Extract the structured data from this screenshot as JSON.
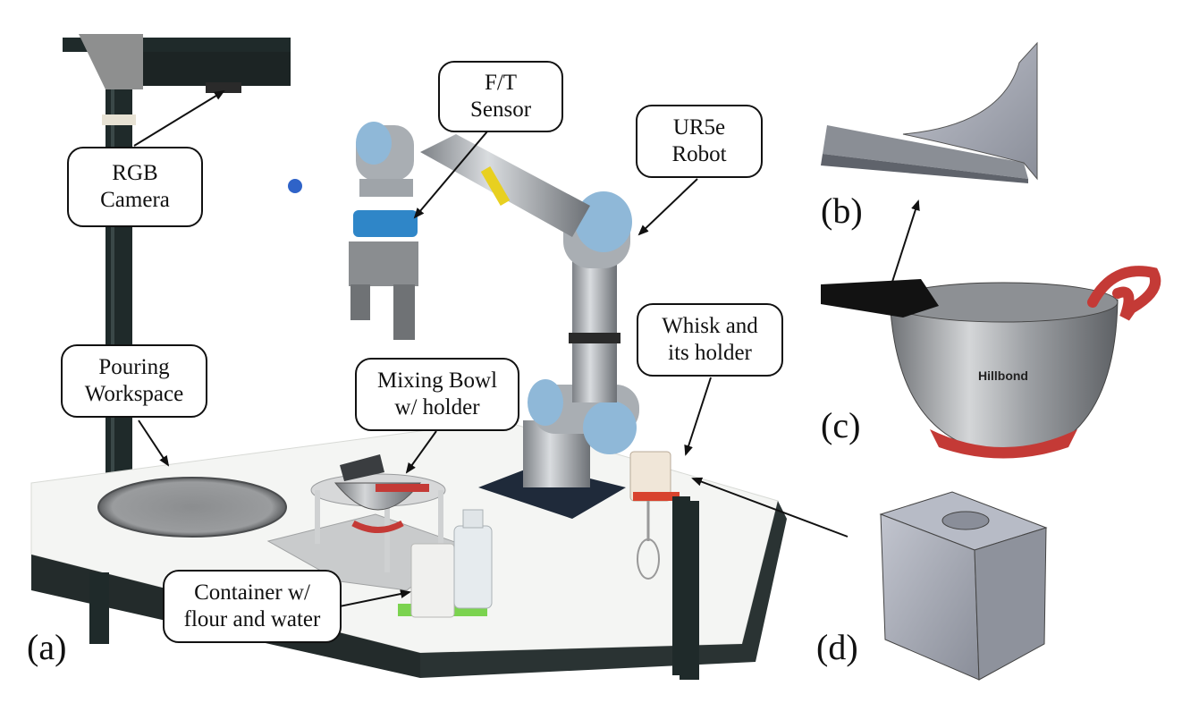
{
  "callouts": {
    "rgb_camera": "RGB\nCamera",
    "ft_sensor": "F/T\nSensor",
    "ur5e_robot": "UR5e\nRobot",
    "pouring_workspace": "Pouring\nWorkspace",
    "mixing_bowl": "Mixing Bowl\nw/ holder",
    "whisk": "Whisk and\nits holder",
    "container": "Container w/\nflour and water"
  },
  "panel_labels": {
    "a": "(a)",
    "b": "(b)",
    "c": "(c)",
    "d": "(d)"
  },
  "bowl_brand": "Hillbond",
  "colors": {
    "robot_blue": "#8fb8d8",
    "robot_grey": "#a9aeb3",
    "frame_dark": "#1f2a2a",
    "table_white": "#f4f5f3",
    "bowl_red": "#c43a36",
    "steel": "#b9bcbf",
    "cad_grey": "#9fa3ad"
  }
}
